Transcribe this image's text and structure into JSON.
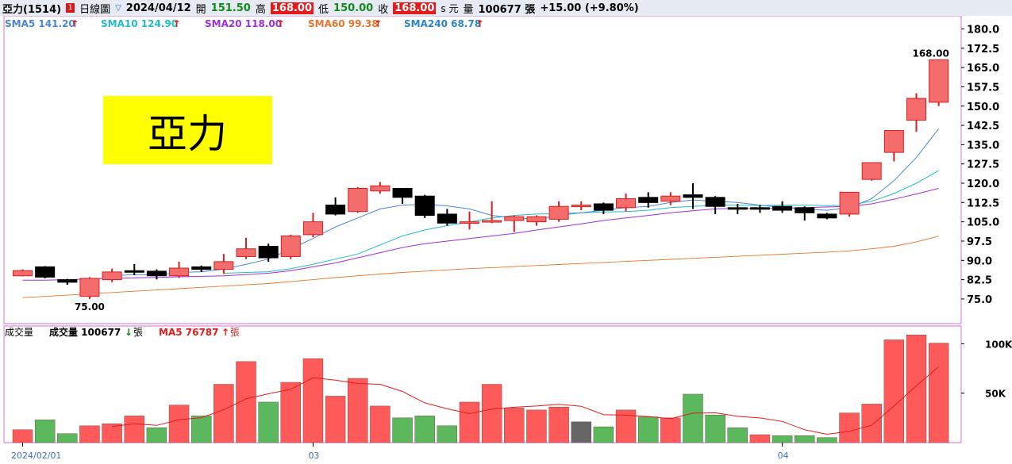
{
  "header": {
    "stock_name": "亞力(1514)",
    "flag": "1",
    "period": "日線圖",
    "dropdown": "▽",
    "date": "2024/04/12",
    "open_label": "開",
    "open": "151.50",
    "high_label": "高",
    "high": "168.00",
    "low_label": "低",
    "low": "150.00",
    "close_label": "收",
    "close": "168.00",
    "currency_suffix": "s 元",
    "volume_label": "量",
    "volume": "100677 張",
    "change": "+15.00 (+9.80%)"
  },
  "overlay_title": "亞力",
  "colors": {
    "up": "#f56c6c",
    "up_border": "#d81e1e",
    "down": "#000000",
    "vol_up": "#ff5a5a",
    "vol_down": "#5cb85c",
    "vol_flat": "#666666",
    "sma5": "#4a86d8",
    "sma10": "#22bcc8",
    "sma20": "#a02fd8",
    "sma60": "#e6752a",
    "sma240": "#2a86c8",
    "vol_ma5": "#e31b1b",
    "title_box": "#ffff00",
    "frame": "#d86fd8"
  },
  "chart_data": [
    {
      "type": "candlestick",
      "legend": [
        {
          "key": "sma5",
          "label": "SMA5 141.20",
          "arrow": "↑"
        },
        {
          "key": "sma10",
          "label": "SMA10 124.90",
          "arrow": "↑"
        },
        {
          "key": "sma20",
          "label": "SMA20 118.00",
          "arrow": "↑"
        },
        {
          "key": "sma60",
          "label": "SMA60 99.38",
          "arrow": "↑"
        },
        {
          "key": "sma240",
          "label": "SMA240 68.78",
          "arrow": "↑"
        }
      ],
      "ylim": [
        68.5,
        182
      ],
      "y_ticks": [
        "180.0",
        "172.5",
        "165.0",
        "157.5",
        "150.0",
        "142.5",
        "135.0",
        "127.5",
        "120.0",
        "112.5",
        "105.0",
        "97.5",
        "90.0",
        "82.5",
        "75.0"
      ],
      "x_labels": [
        {
          "index": 0,
          "label": "2024/02/01"
        },
        {
          "index": 13,
          "label": "03"
        },
        {
          "index": 34,
          "label": "04"
        }
      ],
      "max_label": "168.00",
      "min_label": "75.00",
      "candles": [
        {
          "o": 84.0,
          "h": 86.5,
          "l": 83.8,
          "c": 86.0
        },
        {
          "o": 87.5,
          "h": 87.8,
          "l": 83.0,
          "c": 83.5
        },
        {
          "o": 82.5,
          "h": 82.8,
          "l": 80.5,
          "c": 81.5
        },
        {
          "o": 76.0,
          "h": 83.5,
          "l": 75.0,
          "c": 83.0
        },
        {
          "o": 82.5,
          "h": 86.8,
          "l": 81.5,
          "c": 85.5
        },
        {
          "o": 86.0,
          "h": 88.6,
          "l": 84.2,
          "c": 85.5
        },
        {
          "o": 85.8,
          "h": 86.5,
          "l": 82.6,
          "c": 84.0
        },
        {
          "o": 84.0,
          "h": 89.5,
          "l": 83.2,
          "c": 87.0
        },
        {
          "o": 87.5,
          "h": 88.0,
          "l": 85.5,
          "c": 86.5
        },
        {
          "o": 86.5,
          "h": 92.5,
          "l": 84.8,
          "c": 89.5
        },
        {
          "o": 91.5,
          "h": 98.8,
          "l": 90.5,
          "c": 94.5
        },
        {
          "o": 95.5,
          "h": 96.5,
          "l": 89.5,
          "c": 91.0
        },
        {
          "o": 91.5,
          "h": 100.0,
          "l": 90.5,
          "c": 99.5
        },
        {
          "o": 100.0,
          "h": 108.5,
          "l": 99.0,
          "c": 105.0
        },
        {
          "o": 111.5,
          "h": 114.5,
          "l": 107.5,
          "c": 108.0
        },
        {
          "o": 109.0,
          "h": 118.5,
          "l": 108.5,
          "c": 118.0
        },
        {
          "o": 117.0,
          "h": 120.5,
          "l": 116.0,
          "c": 119.0
        },
        {
          "o": 118.0,
          "h": 118.0,
          "l": 112.0,
          "c": 114.5
        },
        {
          "o": 115.0,
          "h": 115.5,
          "l": 106.5,
          "c": 107.5
        },
        {
          "o": 108.0,
          "h": 110.0,
          "l": 103.5,
          "c": 104.5
        },
        {
          "o": 105.0,
          "h": 109.0,
          "l": 102.0,
          "c": 105.0
        },
        {
          "o": 105.0,
          "h": 113.0,
          "l": 104.5,
          "c": 105.5
        },
        {
          "o": 105.5,
          "h": 107.5,
          "l": 101.0,
          "c": 107.0
        },
        {
          "o": 105.0,
          "h": 107.5,
          "l": 103.5,
          "c": 107.0
        },
        {
          "o": 106.0,
          "h": 113.0,
          "l": 105.0,
          "c": 111.0
        },
        {
          "o": 111.0,
          "h": 113.0,
          "l": 109.5,
          "c": 111.5
        },
        {
          "o": 112.0,
          "h": 112.5,
          "l": 108.0,
          "c": 109.5
        },
        {
          "o": 110.5,
          "h": 116.0,
          "l": 109.0,
          "c": 114.0
        },
        {
          "o": 114.5,
          "h": 116.5,
          "l": 110.5,
          "c": 112.5
        },
        {
          "o": 113.0,
          "h": 116.5,
          "l": 111.5,
          "c": 115.0
        },
        {
          "o": 115.5,
          "h": 120.0,
          "l": 110.0,
          "c": 114.5
        },
        {
          "o": 114.5,
          "h": 115.0,
          "l": 108.0,
          "c": 111.0
        },
        {
          "o": 110.5,
          "h": 112.0,
          "l": 108.0,
          "c": 110.0
        },
        {
          "o": 110.5,
          "h": 111.5,
          "l": 108.5,
          "c": 110.0
        },
        {
          "o": 111.0,
          "h": 113.0,
          "l": 108.5,
          "c": 109.5
        },
        {
          "o": 110.5,
          "h": 111.0,
          "l": 105.5,
          "c": 108.5
        },
        {
          "o": 108.0,
          "h": 108.5,
          "l": 106.0,
          "c": 106.5
        },
        {
          "o": 108.0,
          "h": 116.5,
          "l": 107.0,
          "c": 116.5
        },
        {
          "o": 121.5,
          "h": 128.0,
          "l": 121.0,
          "c": 128.0
        },
        {
          "o": 132.0,
          "h": 140.5,
          "l": 128.5,
          "c": 140.5
        },
        {
          "o": 144.5,
          "h": 155.0,
          "l": 140.0,
          "c": 153.0
        },
        {
          "o": 151.5,
          "h": 168.0,
          "l": 150.0,
          "c": 168.0
        }
      ],
      "sma5": [
        null,
        null,
        null,
        null,
        84.0,
        84.5,
        84.3,
        85.3,
        85.6,
        86.6,
        88.5,
        90.5,
        94.5,
        98.5,
        103.0,
        106.5,
        110.0,
        111.5,
        111.8,
        111.2,
        110.0,
        107.5,
        106.5,
        106.0,
        107.5,
        108.5,
        109.5,
        110.5,
        111.0,
        112.5,
        113.5,
        113.0,
        112.5,
        111.5,
        110.5,
        110.0,
        109.5,
        110.5,
        114.0,
        121.0,
        130.0,
        141.2
      ],
      "sma10": [
        null,
        null,
        null,
        null,
        null,
        null,
        null,
        null,
        null,
        85.0,
        85.3,
        85.6,
        86.8,
        88.5,
        90.5,
        92.5,
        96.0,
        99.5,
        101.8,
        103.5,
        105.0,
        106.5,
        107.5,
        108.0,
        108.2,
        108.5,
        108.8,
        109.0,
        109.5,
        110.5,
        111.0,
        111.5,
        111.5,
        111.3,
        111.5,
        111.5,
        111.3,
        111.5,
        113.0,
        116.0,
        120.0,
        124.9
      ],
      "sma20": [
        82.3,
        82.3,
        82.5,
        82.8,
        83.0,
        83.2,
        83.4,
        83.6,
        83.8,
        84.0,
        84.5,
        85.0,
        86.0,
        87.5,
        89.0,
        91.0,
        93.0,
        95.0,
        96.5,
        97.5,
        98.5,
        99.5,
        100.5,
        101.8,
        103.0,
        104.2,
        105.5,
        106.5,
        107.5,
        108.5,
        109.3,
        110.0,
        110.2,
        110.2,
        110.3,
        110.5,
        110.8,
        111.0,
        112.0,
        113.8,
        115.8,
        118.0
      ],
      "sma60": [
        75.5,
        76.0,
        76.5,
        77.0,
        77.5,
        78.0,
        78.5,
        79.0,
        79.5,
        80.0,
        80.5,
        81.0,
        81.8,
        82.5,
        83.3,
        84.0,
        84.7,
        85.3,
        85.8,
        86.3,
        86.8,
        87.2,
        87.6,
        88.0,
        88.4,
        88.8,
        89.2,
        89.6,
        90.0,
        90.4,
        90.8,
        91.2,
        91.6,
        92.0,
        92.4,
        92.8,
        93.2,
        93.7,
        94.5,
        95.5,
        97.2,
        99.4
      ]
    },
    {
      "type": "bar",
      "title": "成交量",
      "legend_volume": "成交量 100677",
      "legend_volume_arrow": "↓",
      "legend_volume_unit": "張",
      "legend_ma5": "MA5 76787",
      "legend_ma5_arrow": "↑",
      "legend_ma5_unit": "張",
      "ylim": [
        0,
        118000
      ],
      "y_ticks": [
        {
          "value": 100000,
          "label": "100K"
        },
        {
          "value": 50000,
          "label": "50K"
        }
      ],
      "values": [
        13000,
        23000,
        9000,
        17000,
        19000,
        27000,
        15000,
        38000,
        27000,
        59000,
        82000,
        41000,
        61000,
        85000,
        47000,
        65000,
        37000,
        25000,
        27000,
        17000,
        41000,
        59000,
        35000,
        33000,
        36000,
        21000,
        16000,
        33000,
        26000,
        25000,
        49000,
        28000,
        15000,
        8000,
        7000,
        7000,
        5000,
        30000,
        39000,
        104000,
        109000,
        100677
      ],
      "directions": [
        "up",
        "down",
        "down",
        "up",
        "up",
        "up",
        "down",
        "up",
        "down",
        "up",
        "up",
        "down",
        "up",
        "up",
        "up",
        "up",
        "up",
        "down",
        "down",
        "down",
        "up",
        "up",
        "up",
        "up",
        "up",
        "flat",
        "down",
        "up",
        "down",
        "up",
        "down",
        "down",
        "down",
        "up",
        "down",
        "down",
        "down",
        "up",
        "up",
        "up",
        "up",
        "up"
      ],
      "ma5": [
        null,
        null,
        null,
        null,
        16200,
        19000,
        17400,
        23200,
        25200,
        33200,
        44200,
        49400,
        54000,
        65600,
        63200,
        59800,
        59000,
        51800,
        40200,
        34200,
        29400,
        33800,
        35800,
        37000,
        38800,
        36800,
        28200,
        27800,
        26400,
        24200,
        29800,
        30200,
        26600,
        25000,
        21400,
        13000,
        8400,
        11400,
        17600,
        37000,
        57400,
        76787
      ]
    }
  ]
}
